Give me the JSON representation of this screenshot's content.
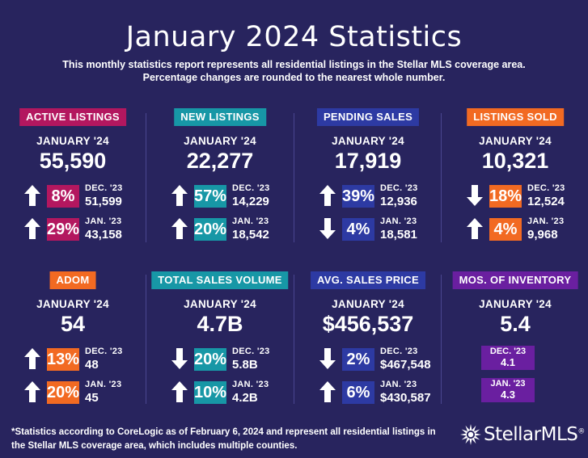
{
  "title": "January 2024 Statistics",
  "subtitle_line1": "This monthly statistics report represents all residential listings in the Stellar MLS coverage area.",
  "subtitle_line2": "Percentage changes are rounded to the nearest whole number.",
  "colors": {
    "background": "#28245e",
    "magenta": "#b3175f",
    "teal": "#1797a6",
    "blue": "#2d3aa3",
    "orange": "#f26a22",
    "purple": "#6a1fa0"
  },
  "cards": {
    "active": {
      "badge": "ACTIVE LISTINGS",
      "period": "JANUARY '24",
      "value": "55,590",
      "row1": {
        "direction": "up",
        "pct": "8%",
        "label": "DEC. '23",
        "value": "51,599"
      },
      "row2": {
        "direction": "up",
        "pct": "29%",
        "label": "JAN. '23",
        "value": "43,158"
      }
    },
    "new": {
      "badge": "NEW LISTINGS",
      "period": "JANUARY '24",
      "value": "22,277",
      "row1": {
        "direction": "up",
        "pct": "57%",
        "label": "DEC. '23",
        "value": "14,229"
      },
      "row2": {
        "direction": "up",
        "pct": "20%",
        "label": "JAN. '23",
        "value": "18,542"
      }
    },
    "pending": {
      "badge": "PENDING SALES",
      "period": "JANUARY '24",
      "value": "17,919",
      "row1": {
        "direction": "up",
        "pct": "39%",
        "label": "DEC. '23",
        "value": "12,936"
      },
      "row2": {
        "direction": "down",
        "pct": "4%",
        "label": "JAN. '23",
        "value": "18,581"
      }
    },
    "sold": {
      "badge": "LISTINGS SOLD",
      "period": "JANUARY '24",
      "value": "10,321",
      "row1": {
        "direction": "down",
        "pct": "18%",
        "label": "DEC. '23",
        "value": "12,524"
      },
      "row2": {
        "direction": "up",
        "pct": "4%",
        "label": "JAN. '23",
        "value": "9,968"
      }
    },
    "adom": {
      "badge": "ADOM",
      "period": "JANUARY '24",
      "value": "54",
      "row1": {
        "direction": "up",
        "pct": "13%",
        "label": "DEC. '23",
        "value": "48"
      },
      "row2": {
        "direction": "up",
        "pct": "20%",
        "label": "JAN. '23",
        "value": "45"
      }
    },
    "volume": {
      "badge": "TOTAL SALES VOLUME",
      "period": "JANUARY '24",
      "value": "4.7B",
      "row1": {
        "direction": "down",
        "pct": "20%",
        "label": "DEC. '23",
        "value": "5.8B"
      },
      "row2": {
        "direction": "up",
        "pct": "10%",
        "label": "JAN. '23",
        "value": "4.2B"
      }
    },
    "price": {
      "badge": "AVG. SALES PRICE",
      "period": "JANUARY '24",
      "value": "$456,537",
      "row1": {
        "direction": "down",
        "pct": "2%",
        "label": "DEC. '23",
        "value": "$467,548"
      },
      "row2": {
        "direction": "up",
        "pct": "6%",
        "label": "JAN. '23",
        "value": "$430,587"
      }
    },
    "inventory": {
      "badge": "MOS. OF INVENTORY",
      "period": "JANUARY '24",
      "value": "5.4",
      "row1": {
        "label": "DEC. '23",
        "value": "4.1"
      },
      "row2": {
        "label": "JAN. '23",
        "value": "4.3"
      }
    }
  },
  "footnote_line1": "*Statistics according to CoreLogic as of February 6, 2024 and represent all residential listings in",
  "footnote_line2": "the Stellar MLS coverage area, which includes multiple counties.",
  "logo": {
    "text": "StellarMLS",
    "mark": "®",
    "icon": "starburst-logo-icon"
  }
}
